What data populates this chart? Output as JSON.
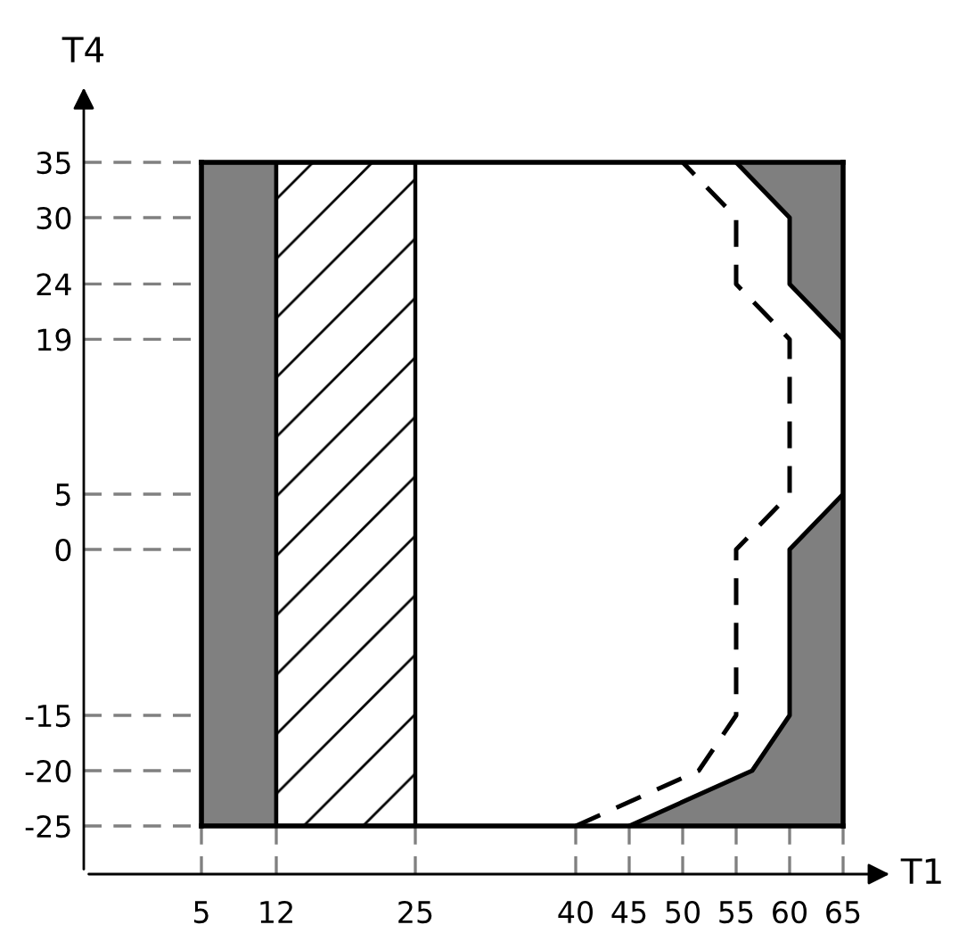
{
  "chart_data": {
    "type": "line",
    "xlabel": "T1",
    "ylabel": "T4",
    "xlim": [
      5,
      65
    ],
    "ylim": [
      -25,
      35
    ],
    "xticks": [
      5,
      12,
      25,
      40,
      45,
      50,
      55,
      60,
      65
    ],
    "yticks": [
      -25,
      -20,
      -15,
      0,
      5,
      19,
      24,
      30,
      35
    ],
    "bands": [
      {
        "axis": "x",
        "from": 5,
        "to": 12,
        "color": "#808080"
      },
      {
        "axis": "x",
        "from": 12,
        "to": 25,
        "color": "#ffffff"
      }
    ],
    "series": [
      {
        "type": "line",
        "color": "#000000",
        "x": [
          45,
          56.5,
          60,
          60,
          65
        ],
        "values": [
          -25,
          -20,
          -15,
          0,
          5
        ],
        "lower": [
          -25,
          -25,
          -25,
          -25,
          -25
        ],
        "upper": [
          -25,
          -20,
          -15,
          0,
          5
        ]
      },
      {
        "type": "line",
        "color": "#000000",
        "x": [
          55,
          60,
          60,
          65
        ],
        "values": [
          35,
          30,
          24,
          19
        ],
        "lower": [
          35,
          30,
          24,
          19
        ],
        "upper": [
          35,
          35,
          35,
          35
        ]
      },
      {
        "color": "#000000",
        "line_style": "dashed",
        "x": [
          40,
          51.5,
          55,
          55,
          60,
          60,
          55,
          55,
          50
        ],
        "values": [
          -25,
          -20,
          -15,
          0,
          5,
          19,
          24,
          30,
          35
        ]
      }
    ],
    "grid": false,
    "legend": false
  }
}
